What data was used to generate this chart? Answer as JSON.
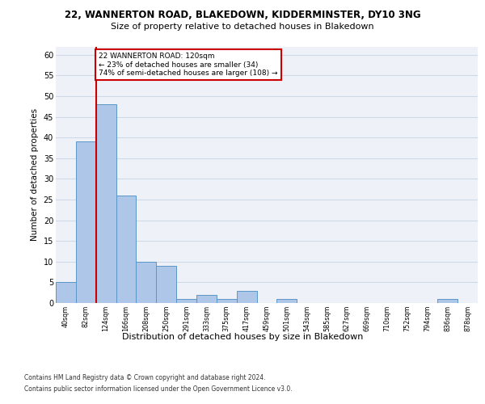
{
  "title1": "22, WANNERTON ROAD, BLAKEDOWN, KIDDERMINSTER, DY10 3NG",
  "title2": "Size of property relative to detached houses in Blakedown",
  "xlabel": "Distribution of detached houses by size in Blakedown",
  "ylabel": "Number of detached properties",
  "bin_labels": [
    "40sqm",
    "82sqm",
    "124sqm",
    "166sqm",
    "208sqm",
    "250sqm",
    "291sqm",
    "333sqm",
    "375sqm",
    "417sqm",
    "459sqm",
    "501sqm",
    "543sqm",
    "585sqm",
    "627sqm",
    "669sqm",
    "710sqm",
    "752sqm",
    "794sqm",
    "836sqm",
    "878sqm"
  ],
  "bar_heights": [
    5,
    39,
    48,
    26,
    10,
    9,
    1,
    2,
    1,
    3,
    0,
    1,
    0,
    0,
    0,
    0,
    0,
    0,
    0,
    1,
    0
  ],
  "bar_color": "#aec6e8",
  "bar_edge_color": "#5a96c8",
  "grid_color": "#d0d8e8",
  "background_color": "#eef2f8",
  "red_line_bin": 2,
  "red_line_color": "#cc0000",
  "annotation_text": "22 WANNERTON ROAD: 120sqm\n← 23% of detached houses are smaller (34)\n74% of semi-detached houses are larger (108) →",
  "annotation_box_color": "#ffffff",
  "annotation_box_edge": "#cc0000",
  "ylim": [
    0,
    62
  ],
  "yticks": [
    0,
    5,
    10,
    15,
    20,
    25,
    30,
    35,
    40,
    45,
    50,
    55,
    60
  ],
  "footer1": "Contains HM Land Registry data © Crown copyright and database right 2024.",
  "footer2": "Contains public sector information licensed under the Open Government Licence v3.0."
}
